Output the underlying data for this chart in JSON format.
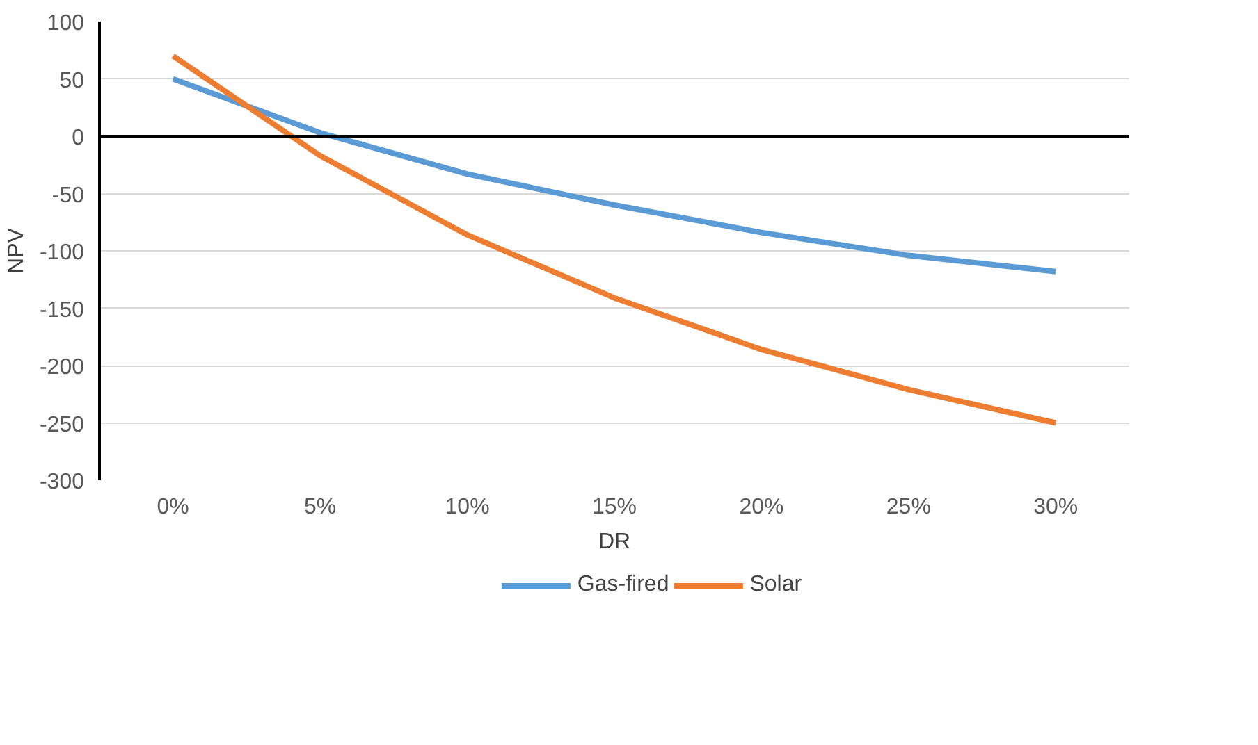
{
  "chart_data": {
    "type": "line",
    "xlabel": "DR",
    "ylabel": "NPV",
    "categories": [
      "0%",
      "5%",
      "10%",
      "15%",
      "20%",
      "25%",
      "30%"
    ],
    "series": [
      {
        "name": "Gas-fired",
        "color": "#5b9bd5",
        "values": [
          50,
          3,
          -33,
          -60,
          -84,
          -104,
          -118
        ]
      },
      {
        "name": "Solar",
        "color": "#ed7d31",
        "values": [
          70,
          -17,
          -86,
          -141,
          -186,
          -221,
          -250
        ]
      }
    ],
    "ylim": [
      -300,
      100
    ],
    "yticks": [
      -300,
      -250,
      -200,
      -150,
      -100,
      -50,
      0,
      50,
      100
    ],
    "grid": "y",
    "legend": "bottom",
    "marker": "none",
    "line_style": "solid"
  }
}
